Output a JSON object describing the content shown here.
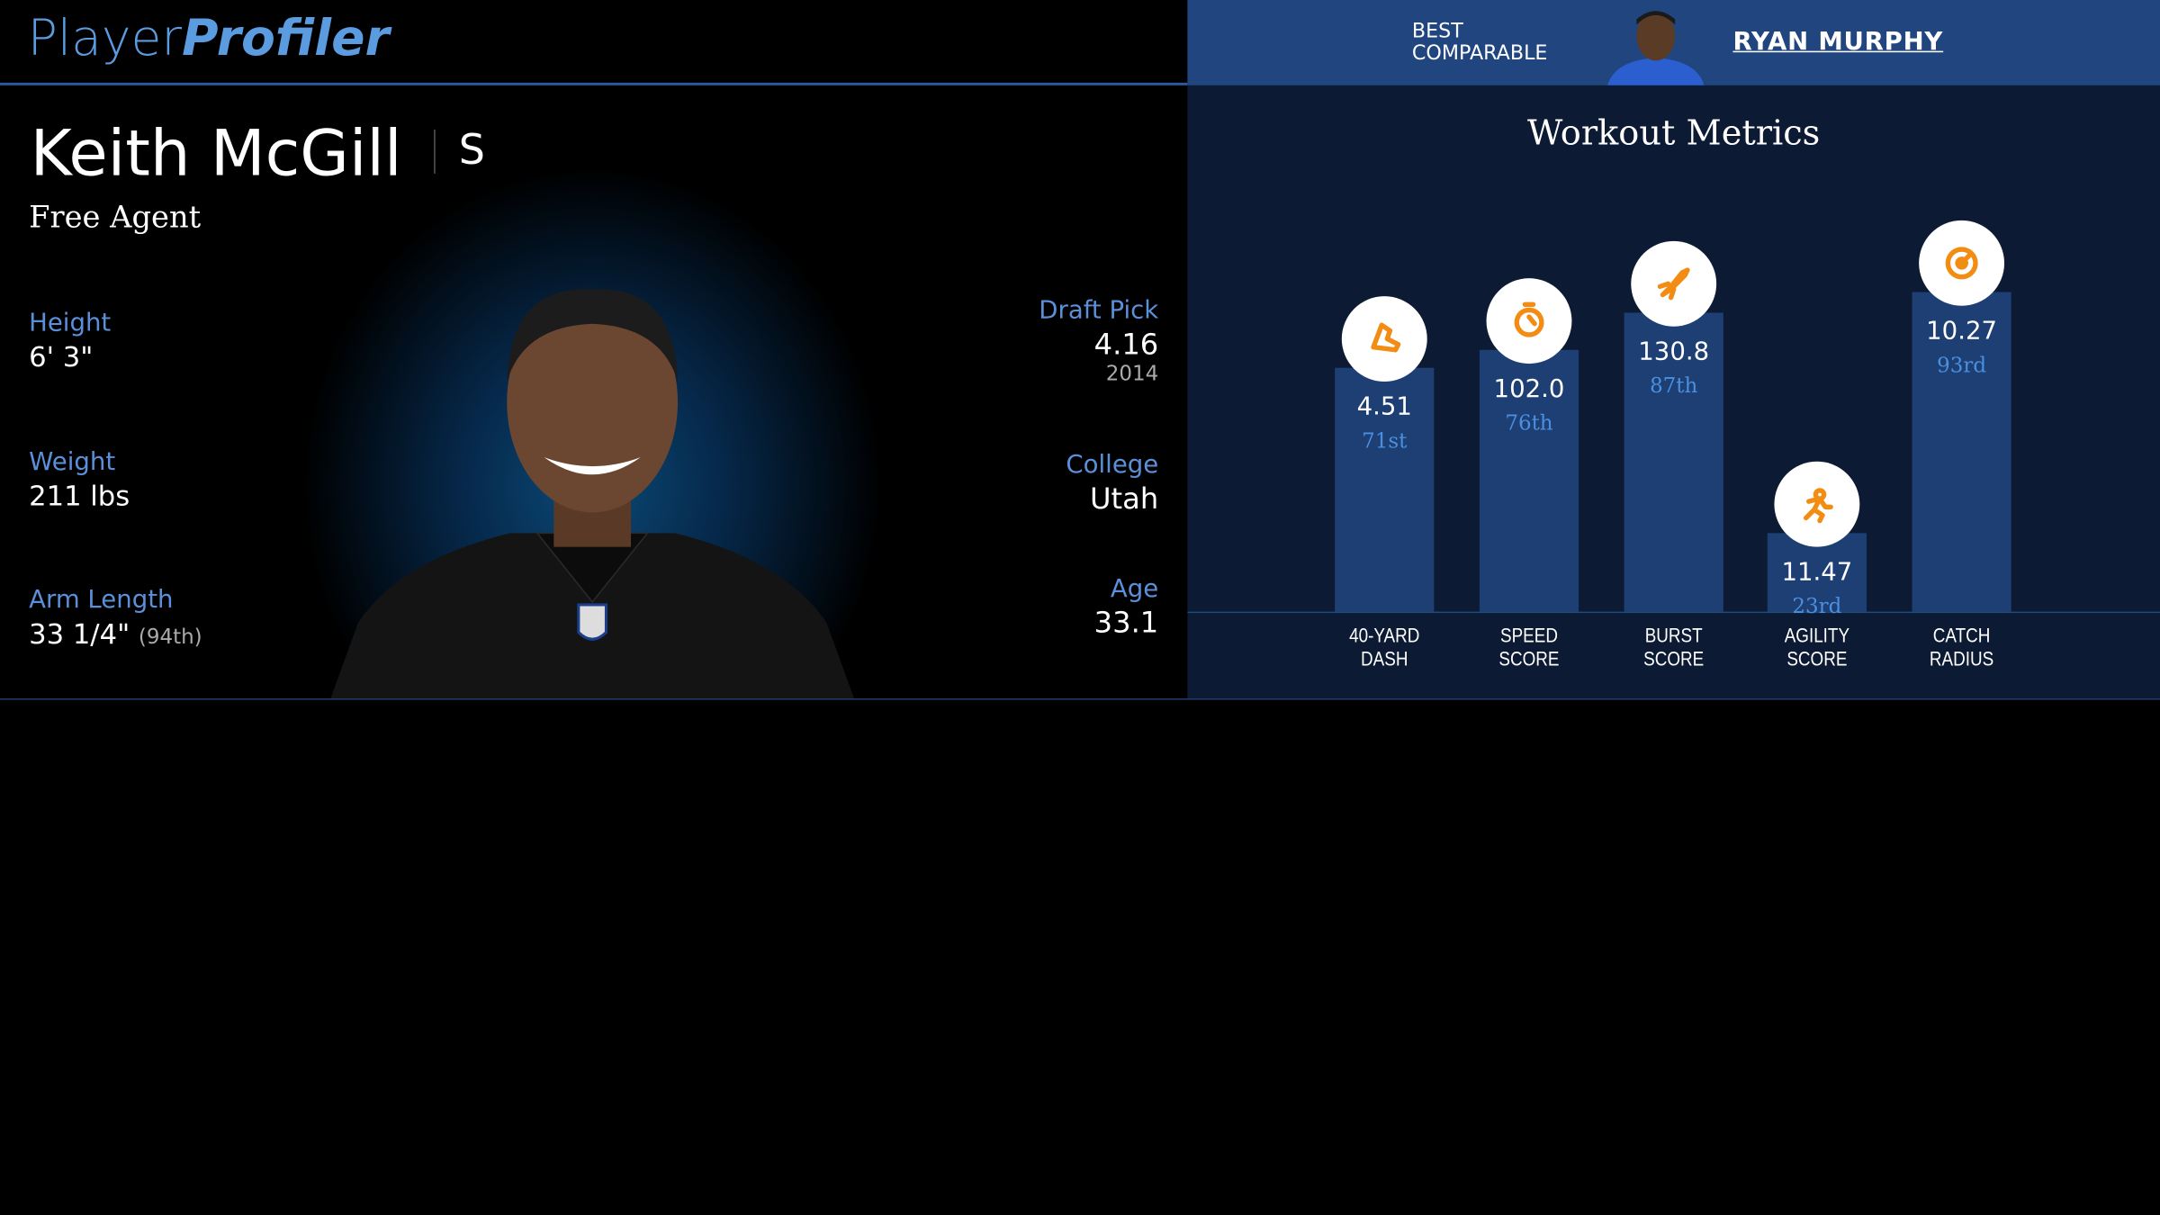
{
  "header": {
    "logo_light": "Player",
    "logo_bold": "Profiler",
    "comparable_label": "BEST COMPARABLE",
    "comparable_name": "RYAN MURPHY"
  },
  "player": {
    "name": "Keith McGill",
    "position": "S",
    "status": "Free Agent"
  },
  "left_stats": [
    {
      "label": "Height",
      "value": "6' 3\""
    },
    {
      "label": "Weight",
      "value": "211 lbs"
    },
    {
      "label": "Arm Length",
      "value": "33 1/4\"",
      "note": "(94th)"
    }
  ],
  "right_stats": [
    {
      "label": "Draft Pick",
      "value": "4.16",
      "note": "2014"
    },
    {
      "label": "College",
      "value": "Utah"
    },
    {
      "label": "Age",
      "value": "33.1"
    }
  ],
  "chart_data": {
    "type": "bar",
    "title": "Workout Metrics",
    "categories": [
      "40-YARD DASH",
      "SPEED SCORE",
      "BURST SCORE",
      "AGILITY SCORE",
      "CATCH RADIUS"
    ],
    "metrics": [
      "4.51",
      "102.0",
      "130.8",
      "11.47",
      "10.27"
    ],
    "values": [
      71,
      76,
      87,
      23,
      93
    ],
    "value_labels": [
      "71st",
      "76th",
      "87th",
      "23rd",
      "93rd"
    ],
    "color": "#1e3f73",
    "ylim": [
      0,
      100
    ]
  }
}
